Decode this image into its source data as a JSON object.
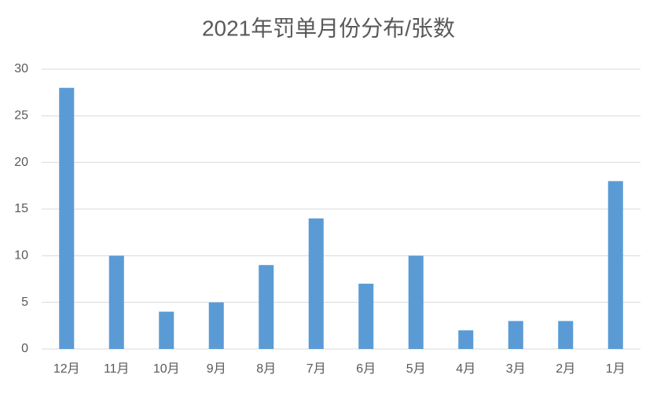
{
  "chart_data": {
    "type": "bar",
    "title": "2021年罚单月份分布/张数",
    "categories": [
      "12月",
      "11月",
      "10月",
      "9月",
      "8月",
      "7月",
      "6月",
      "5月",
      "4月",
      "3月",
      "2月",
      "1月"
    ],
    "values": [
      28,
      10,
      4,
      5,
      9,
      14,
      7,
      10,
      2,
      3,
      3,
      18
    ],
    "color": "#5b9bd5",
    "ylim": [
      0,
      30
    ],
    "yticks": [
      0,
      5,
      10,
      15,
      20,
      25,
      30
    ],
    "grid": true
  }
}
